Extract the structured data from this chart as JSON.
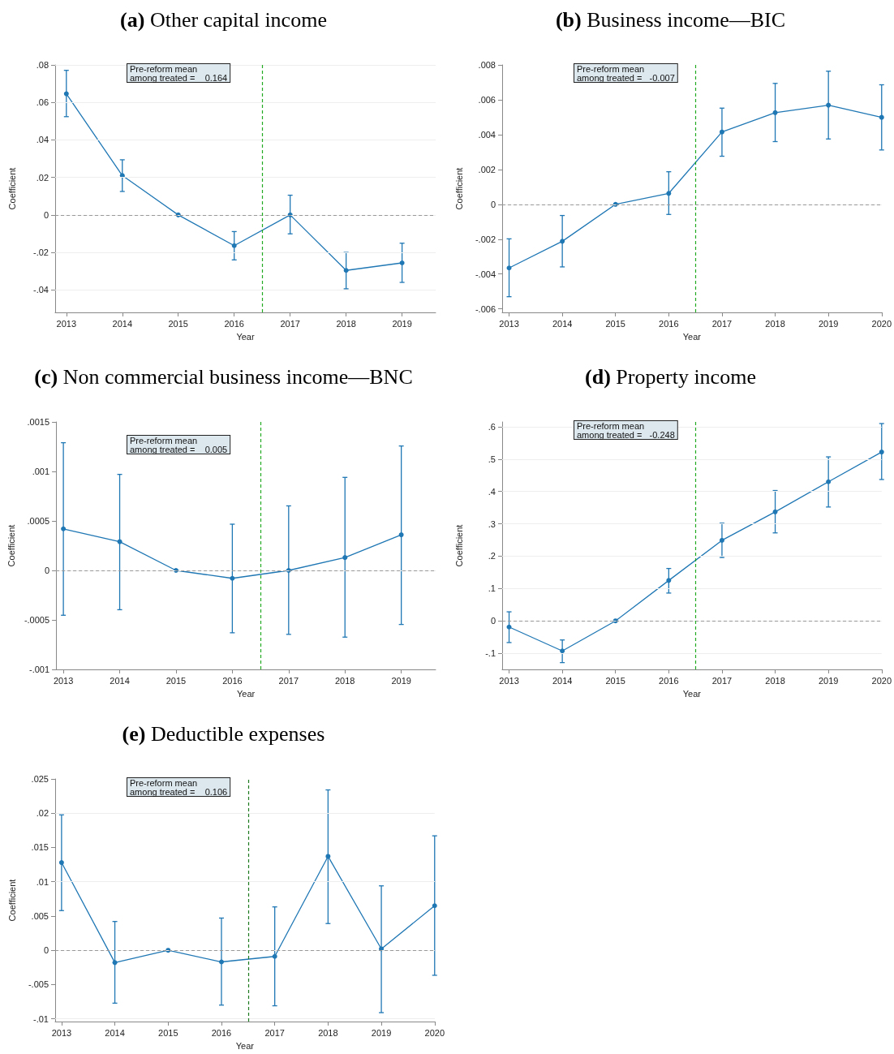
{
  "chart_data": [
    {
      "type": "line",
      "title": "(a) Other capital income",
      "xlabel": "Year",
      "ylabel": "Coefficient",
      "annotations": [
        "Pre-reform mean\namong treated =    0.164"
      ],
      "x": [
        2013,
        2014,
        2015,
        2016,
        2017,
        2018,
        2019
      ],
      "series": [
        {
          "color": "#1f77b4",
          "values": [
            0.0646,
            0.021,
            0,
            -0.0164,
            0,
            -0.0296,
            -0.0256
          ],
          "errors": [
            [
              0.0524,
              0.0771
            ],
            [
              0.0125,
              0.0294
            ],
            null,
            [
              -0.024,
              -0.0089
            ],
            [
              -0.0101,
              0.0105
            ],
            [
              -0.0394,
              -0.02
            ],
            [
              -0.036,
              -0.0151
            ]
          ]
        }
      ],
      "xlim": [
        2012.8,
        2019.6
      ],
      "xticks": [
        2013,
        2014,
        2015,
        2016,
        2017,
        2018,
        2019
      ],
      "ylim": [
        -0.052,
        0.08
      ],
      "yticks": [
        {
          "value": -0.04,
          "label": "-.04"
        },
        {
          "value": -0.02,
          "label": "-.02"
        },
        {
          "value": 0,
          "label": "0"
        },
        {
          "value": 0.02,
          "label": ".02"
        },
        {
          "value": 0.04,
          "label": ".04"
        },
        {
          "value": 0.06,
          "label": ".06"
        },
        {
          "value": 0.08,
          "label": ".08"
        }
      ],
      "ref_lines": [
        {
          "axis": "y",
          "value": 0,
          "color": "#999999",
          "line_style": "dashed"
        },
        {
          "axis": "x",
          "value": 2016.5,
          "color": "#22aa22",
          "line_style": "dashed"
        }
      ],
      "grid": "y",
      "marker": "circle",
      "line_style": "solid"
    },
    {
      "type": "line",
      "title": "(b) Business income—BIC",
      "xlabel": "Year",
      "ylabel": "Coefficient",
      "annotations": [
        "Pre-reform mean\namong treated =   -0.007"
      ],
      "x": [
        2013,
        2014,
        2015,
        2016,
        2017,
        2018,
        2019,
        2020
      ],
      "series": [
        {
          "color": "#1f77b4",
          "values": [
            -0.00365,
            -0.00212,
            0,
            0.00063,
            0.00415,
            0.00526,
            0.00569,
            0.00499
          ],
          "errors": [
            [
              -0.0053,
              -0.00198
            ],
            [
              -0.00359,
              -0.00064
            ],
            null,
            [
              -0.00058,
              0.00187
            ],
            [
              0.00276,
              0.00552
            ],
            [
              0.0036,
              0.00694
            ],
            [
              0.00375,
              0.00764
            ],
            [
              0.00312,
              0.00686
            ]
          ]
        }
      ],
      "xlim": [
        2012.87,
        2020
      ],
      "xticks": [
        2013,
        2014,
        2015,
        2016,
        2017,
        2018,
        2019,
        2020
      ],
      "ylim": [
        -0.0062,
        0.008
      ],
      "yticks": [
        {
          "value": -0.006,
          "label": "-.006"
        },
        {
          "value": -0.004,
          "label": "-.004"
        },
        {
          "value": -0.002,
          "label": "-.002"
        },
        {
          "value": 0,
          "label": "0"
        },
        {
          "value": 0.002,
          "label": ".002"
        },
        {
          "value": 0.004,
          "label": ".004"
        },
        {
          "value": 0.006,
          "label": ".006"
        },
        {
          "value": 0.008,
          "label": ".008"
        }
      ],
      "ref_lines": [
        {
          "axis": "y",
          "value": 0,
          "color": "#999999",
          "line_style": "dashed"
        },
        {
          "axis": "x",
          "value": 2016.5,
          "color": "#22aa22",
          "line_style": "dashed"
        }
      ],
      "grid": "y",
      "marker": "circle",
      "line_style": "solid"
    },
    {
      "type": "line",
      "title": "(c) Non commercial business income—BNC",
      "xlabel": "Year",
      "ylabel": "Coefficient",
      "annotations": [
        "Pre-reform mean\namong treated =    0.005"
      ],
      "x": [
        2013,
        2014,
        2015,
        2016,
        2017,
        2018,
        2019
      ],
      "series": [
        {
          "color": "#1f77b4",
          "values": [
            0.00042,
            0.00029,
            0,
            -8e-05,
            0,
            0.00013,
            0.00036
          ],
          "errors": [
            [
              -0.000453,
              0.00129
            ],
            [
              -0.000397,
              0.00097
            ],
            null,
            [
              -0.00063,
              0.000467
            ],
            [
              -0.000646,
              0.000652
            ],
            [
              -0.000674,
              0.00094
            ],
            [
              -0.000546,
              0.001257
            ]
          ]
        }
      ],
      "xlim": [
        2012.87,
        2019.61
      ],
      "xticks": [
        2013,
        2014,
        2015,
        2016,
        2017,
        2018,
        2019
      ],
      "ylim": [
        -0.001,
        0.0015
      ],
      "yticks": [
        {
          "value": -0.001,
          "label": "-.001"
        },
        {
          "value": -0.0005,
          "label": "-.0005"
        },
        {
          "value": 0,
          "label": "0"
        },
        {
          "value": 0.0005,
          "label": ".0005"
        },
        {
          "value": 0.001,
          "label": ".001"
        },
        {
          "value": 0.0015,
          "label": ".0015"
        }
      ],
      "ref_lines": [
        {
          "axis": "y",
          "value": 0,
          "color": "#999999",
          "line_style": "dashed"
        },
        {
          "axis": "x",
          "value": 2016.5,
          "color": "#22aa22",
          "line_style": "dashed"
        }
      ],
      "grid": "y",
      "marker": "circle",
      "line_style": "solid"
    },
    {
      "type": "line",
      "title": "(d) Property income",
      "xlabel": "Year",
      "ylabel": "Coefficient",
      "annotations": [
        "Pre-reform mean\namong treated =   -0.248"
      ],
      "x": [
        2013,
        2014,
        2015,
        2016,
        2017,
        2018,
        2019,
        2020
      ],
      "series": [
        {
          "color": "#1f77b4",
          "values": [
            -0.019,
            -0.093,
            0,
            0.125,
            0.249,
            0.337,
            0.43,
            0.522
          ],
          "errors": [
            [
              -0.067,
              0.028
            ],
            [
              -0.129,
              -0.059
            ],
            null,
            [
              0.086,
              0.162
            ],
            [
              0.196,
              0.302
            ],
            [
              0.272,
              0.403
            ],
            [
              0.352,
              0.507
            ],
            [
              0.437,
              0.61
            ]
          ]
        }
      ],
      "xlim": [
        2012.87,
        2020
      ],
      "xticks": [
        2013,
        2014,
        2015,
        2016,
        2017,
        2018,
        2019,
        2020
      ],
      "ylim": [
        -0.15,
        0.615
      ],
      "yticks": [
        {
          "value": -0.1,
          "label": "-.1"
        },
        {
          "value": 0,
          "label": "0"
        },
        {
          "value": 0.1,
          "label": ".1"
        },
        {
          "value": 0.2,
          "label": ".2"
        },
        {
          "value": 0.3,
          "label": ".3"
        },
        {
          "value": 0.4,
          "label": ".4"
        },
        {
          "value": 0.5,
          "label": ".5"
        },
        {
          "value": 0.6,
          "label": ".6"
        }
      ],
      "ref_lines": [
        {
          "axis": "y",
          "value": 0,
          "color": "#999999",
          "line_style": "dashed"
        },
        {
          "axis": "x",
          "value": 2016.5,
          "color": "#22aa22",
          "line_style": "dashed"
        }
      ],
      "grid": "y",
      "marker": "circle",
      "line_style": "solid"
    },
    {
      "type": "line",
      "title": "(e) Deductible expenses",
      "xlabel": "Year",
      "ylabel": "Coefficient",
      "annotations": [
        "Pre-reform mean\namong treated =    0.106"
      ],
      "x": [
        2013,
        2014,
        2015,
        2016,
        2017,
        2018,
        2019,
        2020
      ],
      "series": [
        {
          "color": "#1f77b4",
          "values": [
            0.0128,
            -0.0018,
            0,
            -0.0017,
            -0.0009,
            0.0137,
            0.0002,
            0.0065
          ],
          "errors": [
            [
              0.00579,
              0.01976
            ],
            [
              -0.00772,
              0.0042
            ],
            null,
            [
              -0.008,
              0.0047
            ],
            [
              -0.0081,
              0.00633
            ],
            [
              0.0039,
              0.0234
            ],
            [
              -0.0091,
              0.0094
            ],
            [
              -0.00365,
              0.0167
            ]
          ]
        }
      ],
      "xlim": [
        2012.88,
        2020
      ],
      "xticks": [
        2013,
        2014,
        2015,
        2016,
        2017,
        2018,
        2019,
        2020
      ],
      "ylim": [
        -0.0104,
        0.025
      ],
      "yticks": [
        {
          "value": -0.01,
          "label": "-.01"
        },
        {
          "value": -0.005,
          "label": "-.005"
        },
        {
          "value": 0,
          "label": "0"
        },
        {
          "value": 0.005,
          "label": ".005"
        },
        {
          "value": 0.01,
          "label": ".01"
        },
        {
          "value": 0.015,
          "label": ".015"
        },
        {
          "value": 0.02,
          "label": ".02"
        },
        {
          "value": 0.025,
          "label": ".025"
        }
      ],
      "ref_lines": [
        {
          "axis": "y",
          "value": 0,
          "color": "#999999",
          "line_style": "dashed"
        },
        {
          "axis": "x",
          "value": 2016.5,
          "color": "#1e7a1e",
          "line_style": "dashed"
        }
      ],
      "grid": "y",
      "marker": "circle",
      "line_style": "solid"
    }
  ]
}
